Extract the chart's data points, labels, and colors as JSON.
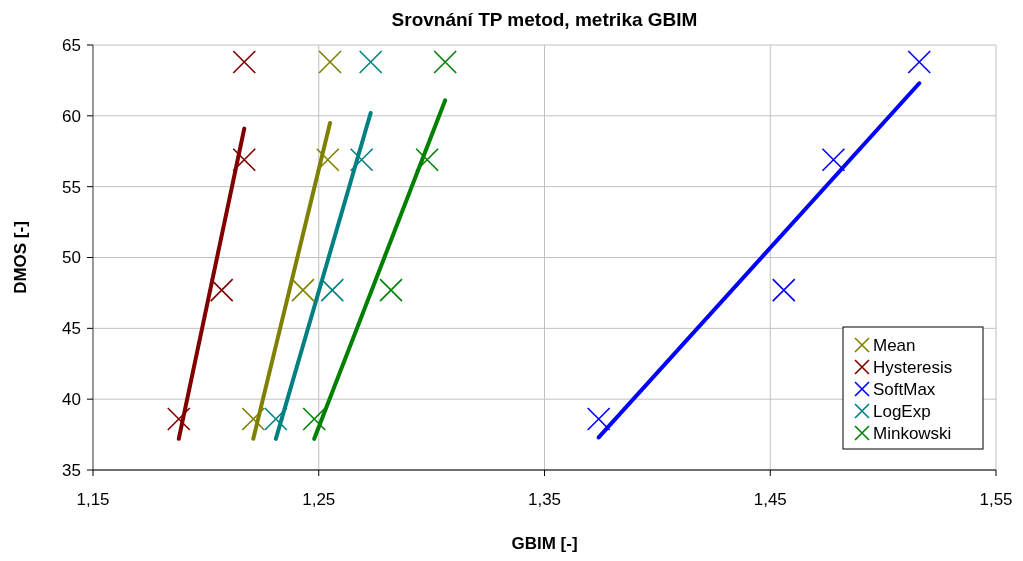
{
  "chart_data": {
    "type": "scatter",
    "title": "Srovnání TP metod, metrika GBIM",
    "xlabel": "GBIM [-]",
    "ylabel": "DMOS [-]",
    "xlim": [
      1.15,
      1.55
    ],
    "xticks": [
      {
        "value": 1.15,
        "label": "1,15"
      },
      {
        "value": 1.25,
        "label": "1,25"
      },
      {
        "value": 1.35,
        "label": "1,35"
      },
      {
        "value": 1.45,
        "label": "1,45"
      },
      {
        "value": 1.55,
        "label": "1,55"
      }
    ],
    "ylim": [
      35,
      65
    ],
    "yticks": [
      35,
      40,
      45,
      50,
      55,
      60,
      65
    ],
    "grid": true,
    "legend": "bottom right",
    "marker": "cross",
    "series": [
      {
        "name": "Mean",
        "color": "#808000",
        "x": [
          1.221,
          1.243,
          1.254,
          1.255
        ],
        "values": [
          38.6,
          47.7,
          56.9,
          63.8
        ]
      },
      {
        "name": "Hysteresis",
        "color": "#800000",
        "x": [
          1.188,
          1.207,
          1.217,
          1.217
        ],
        "values": [
          38.6,
          47.7,
          56.9,
          63.8
        ]
      },
      {
        "name": "SoftMax",
        "color": "#0000ff",
        "x": [
          1.374,
          1.456,
          1.478,
          1.516
        ],
        "values": [
          38.6,
          47.7,
          56.9,
          63.8
        ]
      },
      {
        "name": "LogExp",
        "color": "#008080",
        "x": [
          1.231,
          1.256,
          1.269,
          1.273
        ],
        "values": [
          38.6,
          47.7,
          56.9,
          63.8
        ]
      },
      {
        "name": "Minkowski",
        "color": "#008000",
        "x": [
          1.248,
          1.282,
          1.298,
          1.306
        ],
        "values": [
          38.6,
          47.7,
          56.9,
          63.8
        ]
      },
      {
        "type": "line",
        "color": "#800000",
        "x": [
          1.188,
          1.217
        ],
        "values": [
          37.2,
          59.1
        ],
        "marker": "none"
      },
      {
        "type": "line",
        "color": "#808000",
        "x": [
          1.221,
          1.255
        ],
        "values": [
          37.2,
          59.5
        ],
        "marker": "none"
      },
      {
        "type": "line",
        "color": "#008080",
        "x": [
          1.231,
          1.273
        ],
        "values": [
          37.2,
          60.2
        ],
        "marker": "none"
      },
      {
        "type": "line",
        "color": "#008000",
        "x": [
          1.248,
          1.306
        ],
        "values": [
          37.2,
          61.1
        ],
        "marker": "none"
      },
      {
        "type": "line",
        "color": "#0000ff",
        "x": [
          1.374,
          1.516
        ],
        "values": [
          37.3,
          62.3
        ],
        "marker": "none"
      }
    ]
  }
}
